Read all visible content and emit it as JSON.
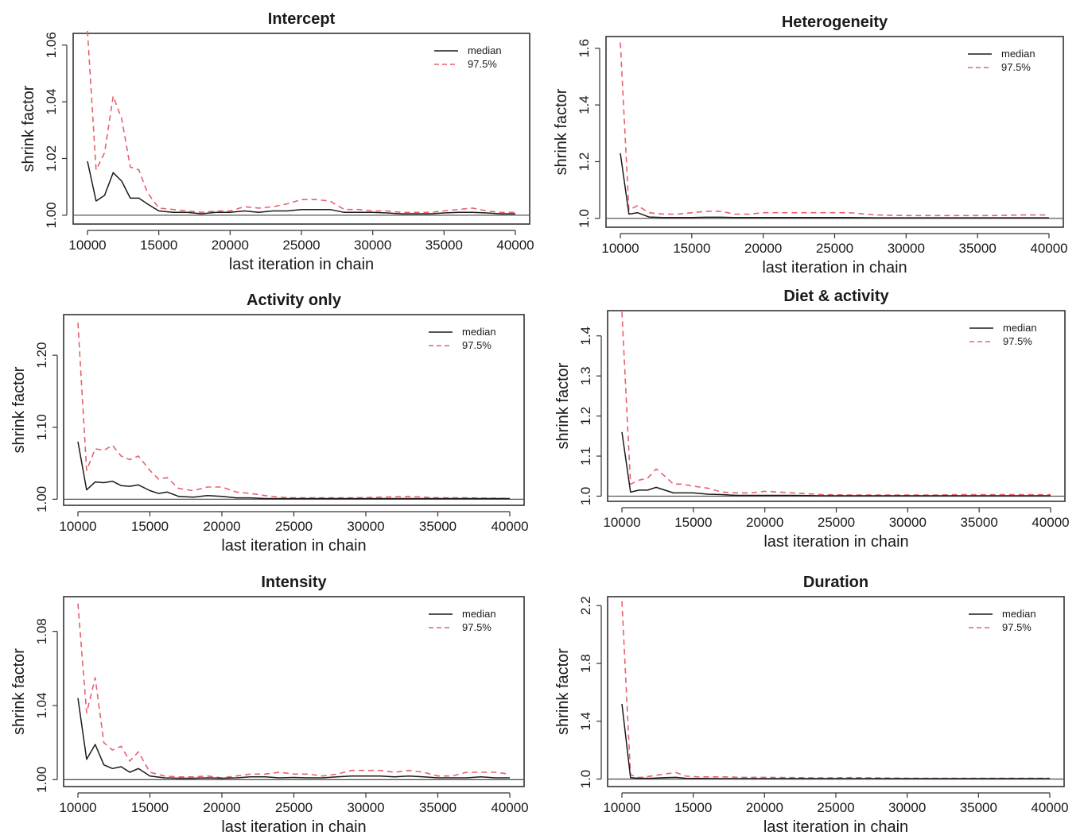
{
  "chart_data": [
    {
      "type": "line",
      "title": "Intercept",
      "xlabel": "last iteration in chain",
      "ylabel": "shrink factor",
      "xlim": [
        10000,
        40000
      ],
      "xticks": [
        10000,
        15000,
        20000,
        25000,
        30000,
        35000,
        40000
      ],
      "ylim": [
        0.998,
        1.063
      ],
      "yticks": [
        1.0,
        1.02,
        1.04,
        1.06
      ],
      "ytick_labels": [
        "1.00",
        "1.02",
        "1.04",
        "1.06"
      ],
      "legend": {
        "position": "top-right",
        "entries": [
          "median",
          "97.5%"
        ]
      },
      "hline": 1.0,
      "x": [
        10000,
        10600,
        11200,
        11800,
        12400,
        13000,
        13600,
        14200,
        15000,
        16000,
        17000,
        18000,
        19000,
        20000,
        21000,
        22000,
        23000,
        24000,
        25000,
        26000,
        27000,
        28000,
        29000,
        30000,
        31000,
        32000,
        33000,
        34000,
        35000,
        36000,
        37000,
        38000,
        39000,
        40000
      ],
      "series": [
        {
          "name": "median",
          "color": "#1a1a1a",
          "dash": false,
          "values": [
            1.019,
            1.005,
            1.007,
            1.015,
            1.012,
            1.006,
            1.006,
            1.004,
            1.0015,
            1.001,
            1.001,
            1.0005,
            1.001,
            1.001,
            1.0015,
            1.001,
            1.0015,
            1.0015,
            1.002,
            1.002,
            1.002,
            1.001,
            1.001,
            1.001,
            1.0008,
            1.0005,
            1.0005,
            1.0005,
            1.0008,
            1.001,
            1.001,
            1.0008,
            1.0005,
            1.0005
          ]
        },
        {
          "name": "97.5%",
          "color": "#e8606e",
          "dash": true,
          "values": [
            1.065,
            1.016,
            1.022,
            1.042,
            1.034,
            1.017,
            1.016,
            1.008,
            1.0025,
            1.002,
            1.0015,
            1.001,
            1.0015,
            1.0015,
            1.003,
            1.0025,
            1.003,
            1.004,
            1.0055,
            1.0055,
            1.005,
            1.002,
            1.002,
            1.0015,
            1.0015,
            1.001,
            1.001,
            1.001,
            1.0015,
            1.002,
            1.0025,
            1.0015,
            1.001,
            1.001
          ]
        }
      ]
    },
    {
      "type": "line",
      "title": "Heterogeneity",
      "xlabel": "last iteration in chain",
      "ylabel": "shrink factor",
      "xlim": [
        10000,
        40000
      ],
      "xticks": [
        10000,
        15000,
        20000,
        25000,
        30000,
        35000,
        40000
      ],
      "ylim": [
        0.98,
        1.63
      ],
      "yticks": [
        1.0,
        1.2,
        1.4,
        1.6
      ],
      "ytick_labels": [
        "1.0",
        "1.2",
        "1.4",
        "1.6"
      ],
      "legend": {
        "position": "top-right",
        "entries": [
          "median",
          "97.5%"
        ]
      },
      "hline": 1.0,
      "x": [
        10000,
        10600,
        11200,
        12000,
        13000,
        14000,
        15000,
        16000,
        17000,
        18000,
        19000,
        20000,
        22000,
        24000,
        26000,
        28000,
        30000,
        32000,
        34000,
        36000,
        38000,
        40000
      ],
      "series": [
        {
          "name": "median",
          "color": "#1a1a1a",
          "dash": false,
          "values": [
            1.23,
            1.015,
            1.02,
            1.005,
            1.003,
            1.003,
            1.003,
            1.004,
            1.004,
            1.003,
            1.003,
            1.003,
            1.003,
            1.003,
            1.003,
            1.002,
            1.002,
            1.002,
            1.002,
            1.002,
            1.002,
            1.002
          ]
        },
        {
          "name": "97.5%",
          "color": "#e8606e",
          "dash": true,
          "values": [
            1.62,
            1.03,
            1.045,
            1.02,
            1.015,
            1.015,
            1.02,
            1.025,
            1.025,
            1.015,
            1.015,
            1.02,
            1.02,
            1.02,
            1.02,
            1.012,
            1.01,
            1.01,
            1.01,
            1.01,
            1.012,
            1.012
          ]
        }
      ]
    },
    {
      "type": "line",
      "title": "Activity only",
      "xlabel": "last iteration in chain",
      "ylabel": "shrink factor",
      "xlim": [
        10000,
        40000
      ],
      "xticks": [
        10000,
        15000,
        20000,
        25000,
        30000,
        35000,
        40000
      ],
      "ylim": [
        0.996,
        1.252
      ],
      "yticks": [
        1.0,
        1.1,
        1.2
      ],
      "ytick_labels": [
        "1.00",
        "1.10",
        "1.20"
      ],
      "legend": {
        "position": "top-right",
        "entries": [
          "median",
          "97.5%"
        ]
      },
      "hline": 1.0,
      "x": [
        10000,
        10600,
        11200,
        11800,
        12400,
        13000,
        13600,
        14200,
        15000,
        15600,
        16200,
        17000,
        18000,
        19000,
        20000,
        21000,
        22000,
        23000,
        24000,
        25000,
        27000,
        29000,
        31000,
        33000,
        35000,
        37000,
        40000
      ],
      "series": [
        {
          "name": "median",
          "color": "#1a1a1a",
          "dash": false,
          "values": [
            1.08,
            1.013,
            1.024,
            1.023,
            1.025,
            1.019,
            1.018,
            1.02,
            1.012,
            1.008,
            1.01,
            1.004,
            1.003,
            1.005,
            1.004,
            1.002,
            1.002,
            1.001,
            1.001,
            1.001,
            1.001,
            1.001,
            1.001,
            1.001,
            1.001,
            1.001,
            1.001
          ]
        },
        {
          "name": "97.5%",
          "color": "#e8606e",
          "dash": true,
          "values": [
            1.245,
            1.04,
            1.07,
            1.068,
            1.075,
            1.06,
            1.055,
            1.06,
            1.04,
            1.028,
            1.03,
            1.015,
            1.012,
            1.017,
            1.017,
            1.01,
            1.008,
            1.005,
            1.003,
            1.002,
            1.002,
            1.002,
            1.003,
            1.004,
            1.002,
            1.002,
            1.001
          ]
        }
      ]
    },
    {
      "type": "line",
      "title": "Diet & activity",
      "xlabel": "last iteration in chain",
      "ylabel": "shrink factor",
      "xlim": [
        10000,
        40000
      ],
      "xticks": [
        10000,
        15000,
        20000,
        25000,
        30000,
        35000,
        40000
      ],
      "ylim": [
        0.995,
        1.455
      ],
      "yticks": [
        1.0,
        1.1,
        1.2,
        1.3,
        1.4
      ],
      "ytick_labels": [
        "1.0",
        "1.1",
        "1.2",
        "1.3",
        "1.4"
      ],
      "legend": {
        "position": "top-right",
        "entries": [
          "median",
          "97.5%"
        ]
      },
      "hline": 1.0,
      "x": [
        10000,
        10600,
        11200,
        11800,
        12400,
        13000,
        13600,
        14200,
        15000,
        16000,
        17000,
        18000,
        19000,
        20000,
        22000,
        24000,
        26000,
        28000,
        30000,
        32000,
        34000,
        36000,
        38000,
        40000
      ],
      "series": [
        {
          "name": "median",
          "color": "#1a1a1a",
          "dash": false,
          "values": [
            1.16,
            1.01,
            1.015,
            1.015,
            1.022,
            1.015,
            1.008,
            1.008,
            1.008,
            1.005,
            1.004,
            1.002,
            1.002,
            1.002,
            1.002,
            1.001,
            1.001,
            1.001,
            1.001,
            1.001,
            1.001,
            1.001,
            1.001,
            1.001
          ]
        },
        {
          "name": "97.5%",
          "color": "#e8606e",
          "dash": true,
          "values": [
            1.46,
            1.03,
            1.04,
            1.045,
            1.068,
            1.05,
            1.03,
            1.03,
            1.025,
            1.02,
            1.01,
            1.008,
            1.008,
            1.012,
            1.008,
            1.004,
            1.003,
            1.003,
            1.003,
            1.003,
            1.004,
            1.004,
            1.004,
            1.004
          ]
        }
      ]
    },
    {
      "type": "line",
      "title": "Intensity",
      "xlabel": "last iteration in chain",
      "ylabel": "shrink factor",
      "xlim": [
        10000,
        40000
      ],
      "xticks": [
        10000,
        15000,
        20000,
        25000,
        30000,
        35000,
        40000
      ],
      "ylim": [
        0.998,
        1.097
      ],
      "yticks": [
        1.0,
        1.04,
        1.08
      ],
      "ytick_labels": [
        "1.00",
        "1.04",
        "1.08"
      ],
      "legend": {
        "position": "top-right",
        "entries": [
          "median",
          "97.5%"
        ]
      },
      "hline": 1.0,
      "x": [
        10000,
        10600,
        11200,
        11800,
        12400,
        13000,
        13600,
        14200,
        15000,
        16000,
        17000,
        18000,
        19000,
        20000,
        21000,
        22000,
        23000,
        24000,
        25000,
        26000,
        27000,
        28000,
        29000,
        30000,
        31000,
        32000,
        33000,
        34000,
        35000,
        36000,
        37000,
        38000,
        39000,
        40000
      ],
      "series": [
        {
          "name": "median",
          "color": "#1a1a1a",
          "dash": false,
          "values": [
            1.044,
            1.011,
            1.019,
            1.008,
            1.006,
            1.007,
            1.004,
            1.006,
            1.002,
            1.001,
            1.0008,
            1.0008,
            1.001,
            1.0008,
            1.001,
            1.0015,
            1.0015,
            1.001,
            1.0012,
            1.001,
            1.001,
            1.0015,
            1.002,
            1.002,
            1.002,
            1.0015,
            1.002,
            1.0015,
            1.001,
            1.001,
            1.001,
            1.0015,
            1.001,
            1.001
          ]
        },
        {
          "name": "97.5%",
          "color": "#e8606e",
          "dash": true,
          "values": [
            1.095,
            1.036,
            1.055,
            1.02,
            1.016,
            1.018,
            1.01,
            1.015,
            1.004,
            1.002,
            1.0015,
            1.0015,
            1.002,
            1.001,
            1.002,
            1.003,
            1.003,
            1.004,
            1.003,
            1.003,
            1.002,
            1.003,
            1.005,
            1.005,
            1.005,
            1.004,
            1.005,
            1.004,
            1.002,
            1.002,
            1.004,
            1.004,
            1.004,
            1.003
          ]
        }
      ]
    },
    {
      "type": "line",
      "title": "Duration",
      "xlabel": "last iteration in chain",
      "ylabel": "shrink factor",
      "xlim": [
        10000,
        40000
      ],
      "xticks": [
        10000,
        15000,
        20000,
        25000,
        30000,
        35000,
        40000
      ],
      "ylim": [
        0.97,
        2.24
      ],
      "yticks": [
        1.0,
        1.4,
        1.8,
        2.2
      ],
      "ytick_labels": [
        "1.0",
        "1.4",
        "1.8",
        "2.2"
      ],
      "legend": {
        "position": "top-right",
        "entries": [
          "median",
          "97.5%"
        ]
      },
      "hline": 1.0,
      "x": [
        10000,
        10600,
        11200,
        12000,
        13000,
        13800,
        14500,
        15500,
        17000,
        18500,
        20000,
        22000,
        24000,
        26000,
        28000,
        30000,
        32000,
        34000,
        36000,
        38000,
        40000
      ],
      "series": [
        {
          "name": "median",
          "color": "#1a1a1a",
          "dash": false,
          "values": [
            1.52,
            1.01,
            1.005,
            1.005,
            1.01,
            1.012,
            1.005,
            1.004,
            1.003,
            1.003,
            1.003,
            1.003,
            1.003,
            1.003,
            1.003,
            1.003,
            1.003,
            1.003,
            1.003,
            1.003,
            1.003
          ]
        },
        {
          "name": "97.5%",
          "color": "#e8606e",
          "dash": true,
          "values": [
            2.23,
            1.03,
            1.01,
            1.02,
            1.035,
            1.045,
            1.02,
            1.015,
            1.015,
            1.012,
            1.012,
            1.01,
            1.008,
            1.01,
            1.008,
            1.006,
            1.005,
            1.005,
            1.005,
            1.005,
            1.005
          ]
        }
      ]
    }
  ]
}
